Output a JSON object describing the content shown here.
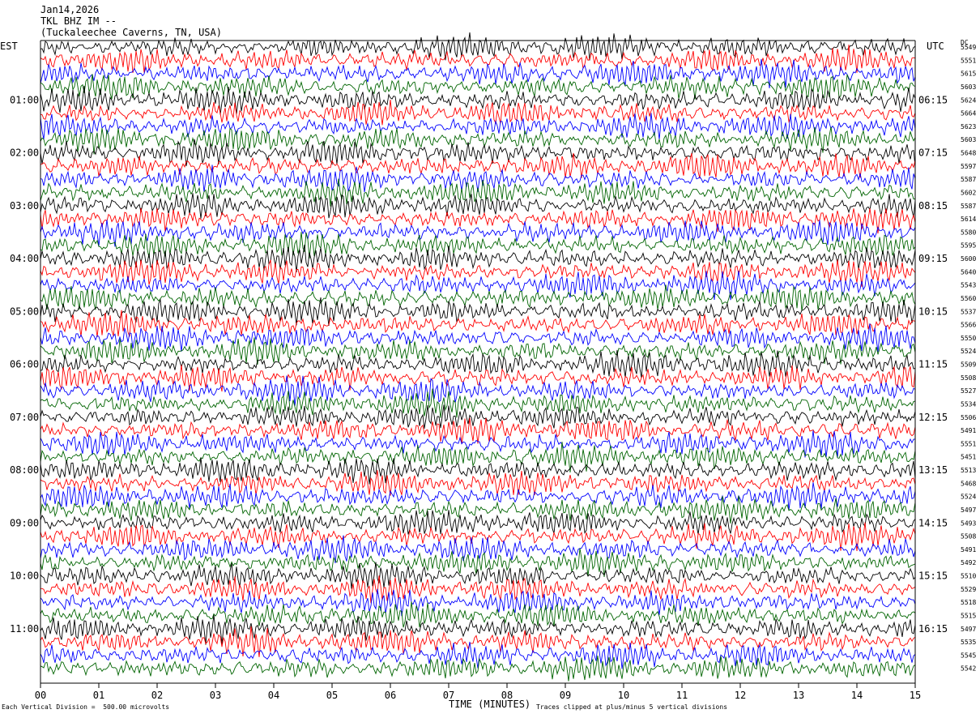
{
  "header": {
    "date": "Jan14,2026",
    "station": "TKL BHZ IM --",
    "location": "(Tuckaleechee Caverns, TN, USA)"
  },
  "left_tz": "EST",
  "right_tz": "UTC",
  "dc_label": "DC",
  "footer": {
    "scale_note": "Each Vertical Division =  500.00 microvolts",
    "clip_note": "Traces clipped at plus/minus 5 vertical divisions"
  },
  "colors": {
    "trace_cycle": [
      "#000000",
      "#ff0000",
      "#0000ff",
      "#006400"
    ],
    "axis": "#000000"
  },
  "chart_data": {
    "type": "line",
    "title": "",
    "xlabel": "TIME (MINUTES)",
    "x_ticks": [
      "00",
      "01",
      "02",
      "03",
      "04",
      "05",
      "06",
      "07",
      "08",
      "09",
      "10",
      "11",
      "12",
      "13",
      "14",
      "15"
    ],
    "xlim": [
      0,
      15
    ],
    "left_hour_labels": [
      "01:00",
      "02:00",
      "03:00",
      "04:00",
      "05:00",
      "06:00",
      "07:00",
      "08:00",
      "09:00",
      "10:00",
      "11:00"
    ],
    "right_hour_labels": [
      "06:15",
      "07:15",
      "08:15",
      "09:15",
      "10:15",
      "11:15",
      "12:15",
      "13:15",
      "14:15",
      "15:15",
      "16:15"
    ],
    "dc_offsets": [
      "5549",
      "5551",
      "5615",
      "5603",
      "5624",
      "5664",
      "5623",
      "5603",
      "5648",
      "5597",
      "5587",
      "5602",
      "5587",
      "5614",
      "5580",
      "5595",
      "5600",
      "5640",
      "5543",
      "5560",
      "5537",
      "5566",
      "5550",
      "5524",
      "5509",
      "5508",
      "5527",
      "5534",
      "5506",
      "5491",
      "5551",
      "5451",
      "5513",
      "5468",
      "5524",
      "5497",
      "5493",
      "5508",
      "5491",
      "5492",
      "5510",
      "5529",
      "5518",
      "5515",
      "5497",
      "5535",
      "5545",
      "5542"
    ],
    "trace_count": 48,
    "minutes_per_trace": 15,
    "grid": false
  }
}
